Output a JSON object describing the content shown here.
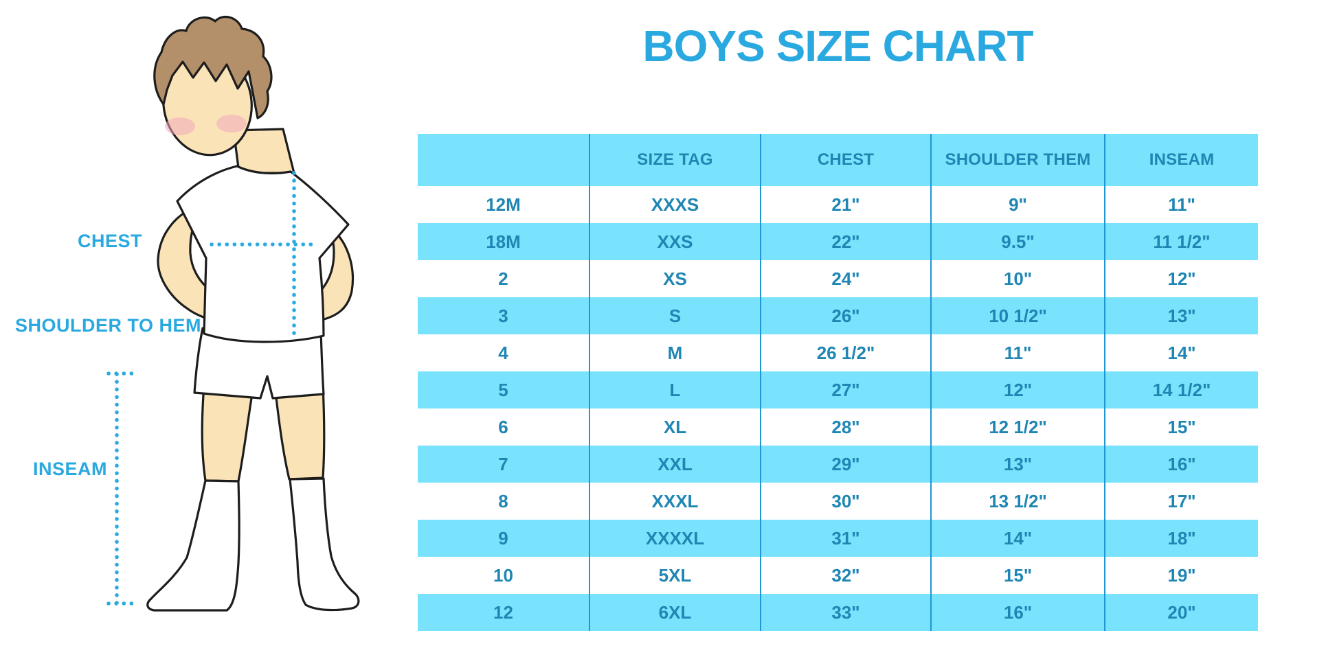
{
  "title": "BOYS SIZE CHART",
  "figure_labels": {
    "chest": "CHEST",
    "shoulder_to_hem": "SHOULDER TO HEM",
    "inseam": "INSEAM"
  },
  "chart_data": {
    "type": "table",
    "title": "BOYS SIZE CHART",
    "columns": [
      "",
      "SIZE TAG",
      "CHEST",
      "SHOULDER THEM",
      "INSEAM"
    ],
    "rows": [
      [
        "12M",
        "XXXS",
        "21\"",
        "9\"",
        "11\""
      ],
      [
        "18M",
        "XXS",
        "22\"",
        "9.5\"",
        "11 1/2\""
      ],
      [
        "2",
        "XS",
        "24\"",
        "10\"",
        "12\""
      ],
      [
        "3",
        "S",
        "26\"",
        "10 1/2\"",
        "13\""
      ],
      [
        "4",
        "M",
        "26 1/2\"",
        "11\"",
        "14\""
      ],
      [
        "5",
        "L",
        "27\"",
        "12\"",
        "14 1/2\""
      ],
      [
        "6",
        "XL",
        "28\"",
        "12 1/2\"",
        "15\""
      ],
      [
        "7",
        "XXL",
        "29\"",
        "13\"",
        "16\""
      ],
      [
        "8",
        "XXXL",
        "30\"",
        "13 1/2\"",
        "17\""
      ],
      [
        "9",
        "XXXXL",
        "31\"",
        "14\"",
        "18\""
      ],
      [
        "10",
        "5XL",
        "32\"",
        "15\"",
        "19\""
      ],
      [
        "12",
        "6XL",
        "33\"",
        "16\"",
        "20\""
      ]
    ],
    "stripe_pattern": "header blue, then rows alternate white/blue starting white",
    "legend_position": "none",
    "grid": "vertical column dividers only"
  },
  "colors": {
    "accent": "#29A9E0",
    "band": "#79E2FC",
    "table_text": "#1F86B4",
    "divider": "#1E97D2",
    "dotted_line": "#29ABE2",
    "skin": "#FBE3B8",
    "hair": "#B3906A",
    "cheek": "#F2A9BE",
    "cloth": "#FFFFFF",
    "outline": "#1D1D1D"
  }
}
